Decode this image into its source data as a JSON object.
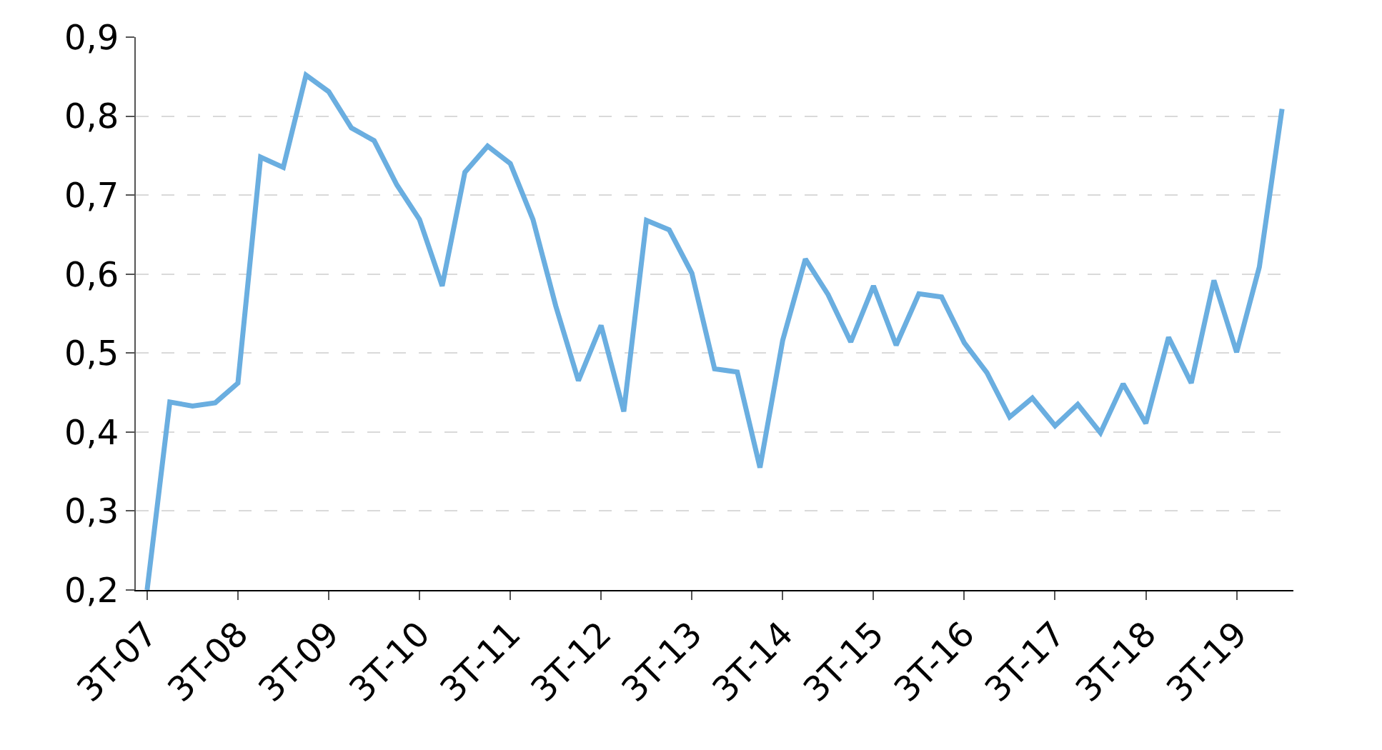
{
  "chart_data": {
    "type": "line",
    "categories": [
      "3T-07",
      null,
      null,
      null,
      "3T-08",
      null,
      null,
      null,
      "3T-09",
      null,
      null,
      null,
      "3T-10",
      null,
      null,
      null,
      "3T-11",
      null,
      null,
      null,
      "3T-12",
      null,
      null,
      null,
      "3T-13",
      null,
      null,
      null,
      "3T-14",
      null,
      null,
      null,
      "3T-15",
      null,
      null,
      null,
      "3T-16",
      null,
      null,
      null,
      "3T-17",
      null,
      null,
      null,
      "3T-18",
      null,
      null,
      null,
      "3T-19",
      null,
      null
    ],
    "series": [
      {
        "color": "#6aaee0",
        "values": [
          0.2,
          0.438,
          0.433,
          0.437,
          0.462,
          0.748,
          0.735,
          0.852,
          0.831,
          0.785,
          0.769,
          0.713,
          0.669,
          0.585,
          0.729,
          0.762,
          0.74,
          0.669,
          0.56,
          0.465,
          0.535,
          0.426,
          0.668,
          0.656,
          0.601,
          0.48,
          0.476,
          0.355,
          0.516,
          0.619,
          0.574,
          0.514,
          0.585,
          0.51,
          0.575,
          0.571,
          0.513,
          0.475,
          0.419,
          0.443,
          0.408,
          0.435,
          0.399,
          0.461,
          0.411,
          0.52,
          0.462,
          0.592,
          0.501,
          0.609,
          0.809
        ]
      }
    ],
    "ylim": [
      0.2,
      0.9
    ],
    "yticks": [
      {
        "value": 0.2,
        "label": "0,2"
      },
      {
        "value": 0.3,
        "label": "0,3"
      },
      {
        "value": 0.4,
        "label": "0,4"
      },
      {
        "value": 0.5,
        "label": "0,5"
      },
      {
        "value": 0.6,
        "label": "0,6"
      },
      {
        "value": 0.7,
        "label": "0,7"
      },
      {
        "value": 0.8,
        "label": "0,8"
      },
      {
        "value": 0.9,
        "label": "0,9"
      }
    ],
    "grid": "y",
    "marker": "none",
    "line_style": "solid"
  }
}
